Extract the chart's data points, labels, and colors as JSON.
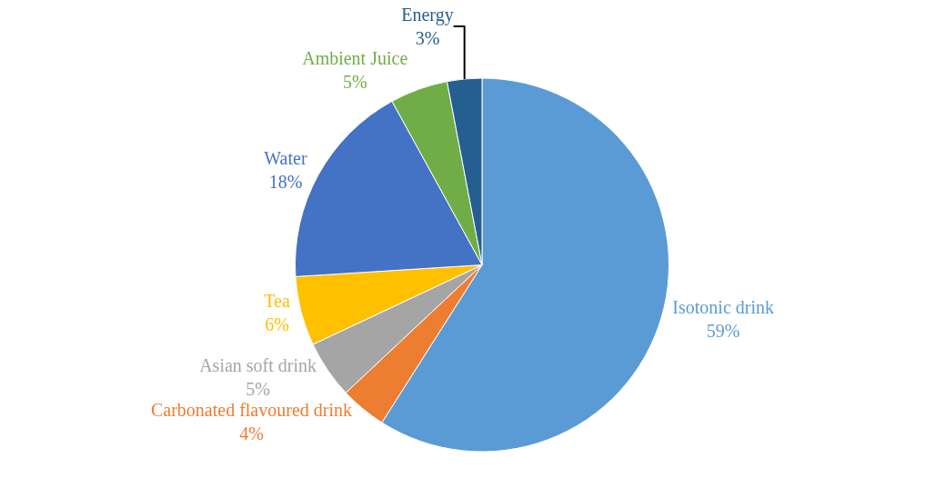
{
  "chart_data": {
    "type": "pie",
    "categories": [
      "Isotonic drink",
      "Carbonated flavoured drink",
      "Asian soft drink",
      "Tea",
      "Water",
      "Ambient Juice",
      "Energy"
    ],
    "values": [
      59,
      4,
      5,
      6,
      18,
      5,
      3
    ],
    "value_labels": [
      "59%",
      "4%",
      "5%",
      "6%",
      "18%",
      "5%",
      "3%"
    ],
    "colors": [
      "#5b9bd5",
      "#ed7d31",
      "#a5a5a5",
      "#ffc000",
      "#4472c4",
      "#70ad47",
      "#255e91"
    ],
    "legend": false
  }
}
